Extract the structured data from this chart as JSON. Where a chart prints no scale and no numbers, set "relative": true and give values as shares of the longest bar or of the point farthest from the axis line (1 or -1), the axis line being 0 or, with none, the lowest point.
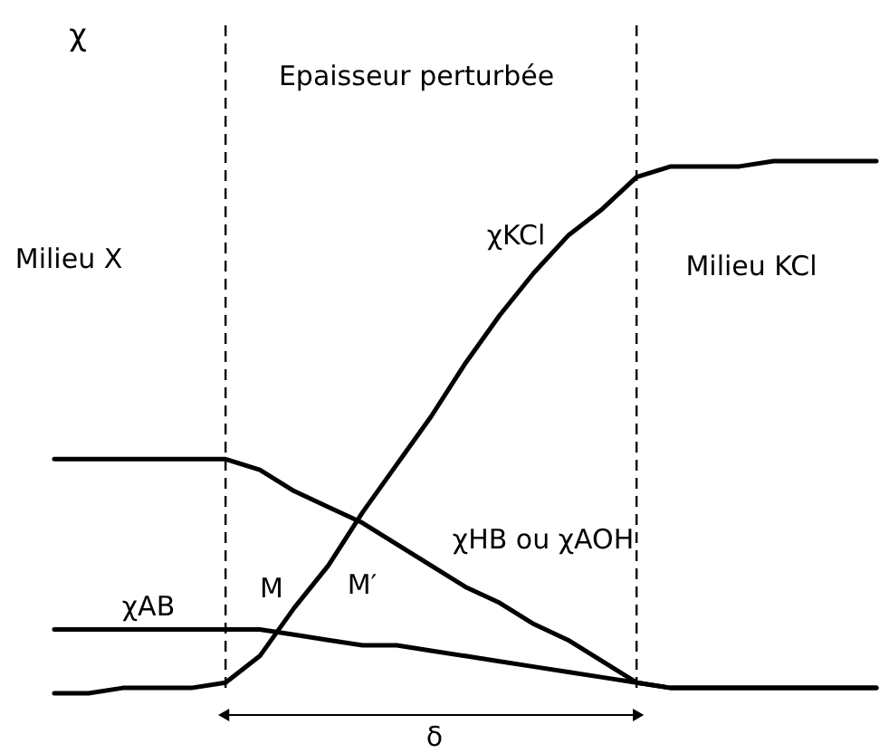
{
  "chart_data": {
    "type": "line",
    "relative": true,
    "ylabel": "χ",
    "legend": false,
    "tick_labels": false,
    "line_style": "solid",
    "marker": "none",
    "categories": [
      null,
      null,
      null,
      null,
      null,
      null,
      null,
      null,
      null,
      null,
      null,
      null,
      null,
      null,
      null,
      null,
      null,
      null,
      null,
      null,
      null,
      null,
      null,
      null,
      null
    ],
    "series": [
      {
        "name": "χKCl",
        "color": "#000000",
        "values": [
          0,
          0,
          0.01,
          0.01,
          0.01,
          0.02,
          0.07,
          0.16,
          0.24,
          0.34,
          0.43,
          0.52,
          0.62,
          0.71,
          0.79,
          0.86,
          0.91,
          0.97,
          0.99,
          0.99,
          0.99,
          1.0,
          1.0,
          1.0,
          1.0
        ]
      },
      {
        "name": "χHB ou χAOH",
        "color": "#000000",
        "values": [
          0.44,
          0.44,
          0.44,
          0.44,
          0.44,
          0.44,
          0.42,
          0.38,
          0.35,
          0.32,
          0.28,
          0.24,
          0.2,
          0.17,
          0.13,
          0.1,
          0.06,
          0.02,
          0.01,
          0.01,
          0.01,
          0.01,
          0.01,
          0.01,
          0.01
        ]
      },
      {
        "name": "χAB",
        "color": "#000000",
        "values": [
          0.12,
          0.12,
          0.12,
          0.12,
          0.12,
          0.12,
          0.12,
          0.11,
          0.1,
          0.09,
          0.09,
          0.08,
          0.07,
          0.06,
          0.05,
          0.04,
          0.03,
          0.02,
          0.01,
          0.01,
          0.01,
          0.01,
          0.01,
          0.01,
          0.01
        ]
      }
    ],
    "annotations": [
      "Epaisseur perturbée",
      "Milieu X",
      "Milieu KCl",
      "M",
      "M′",
      "δ"
    ]
  }
}
